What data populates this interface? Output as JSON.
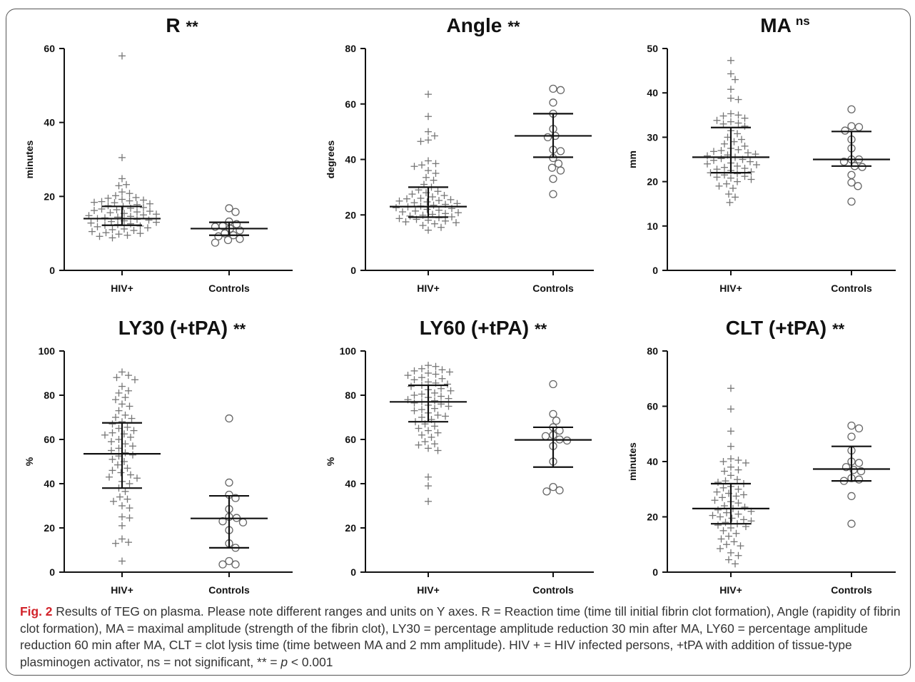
{
  "chart_data": [
    {
      "type": "scatter",
      "title": "R",
      "significance": "**",
      "ylabel": "minutes",
      "ylim": [
        0,
        60
      ],
      "yticks": [
        0,
        20,
        40,
        60
      ],
      "categories": [
        "HIV+",
        "Controls"
      ],
      "groups": [
        {
          "name": "HIV+",
          "marker": "plus",
          "values": [
            58.0,
            30.5,
            24.8,
            23.2,
            22.9,
            21.2,
            20.8,
            20.2,
            19.7,
            19.5,
            19.2,
            19.0,
            18.8,
            18.6,
            18.4,
            18.3,
            18.0,
            17.8,
            17.5,
            17.3,
            17.0,
            16.8,
            16.6,
            16.4,
            16.2,
            16.0,
            15.8,
            15.6,
            15.4,
            15.2,
            15.0,
            14.8,
            14.6,
            14.4,
            14.2,
            14.0,
            13.8,
            13.6,
            13.4,
            13.2,
            13.0,
            12.8,
            12.6,
            12.4,
            12.2,
            12.0,
            11.8,
            11.5,
            11.2,
            11.0,
            10.8,
            10.5,
            10.2,
            10.0,
            9.8,
            9.5,
            9.2,
            8.8
          ],
          "median": 14.0,
          "q1": 12.2,
          "q3": 17.3
        },
        {
          "name": "Controls",
          "marker": "circle",
          "values": [
            16.8,
            15.8,
            13.2,
            12.5,
            12.0,
            11.8,
            11.3,
            10.8,
            10.0,
            9.5,
            9.2,
            8.5,
            8.2,
            7.5
          ],
          "median": 11.3,
          "q1": 9.5,
          "q3": 13.0
        }
      ]
    },
    {
      "type": "scatter",
      "title": "Angle",
      "significance": "**",
      "ylabel": "degrees",
      "ylim": [
        0,
        80
      ],
      "yticks": [
        0,
        20,
        40,
        60,
        80
      ],
      "categories": [
        "HIV+",
        "Controls"
      ],
      "groups": [
        {
          "name": "HIV+",
          "marker": "plus",
          "values": [
            63.5,
            55.5,
            50.0,
            48.5,
            47.0,
            46.5,
            39.5,
            38.5,
            38.0,
            37.5,
            36.0,
            35.0,
            33.5,
            32.5,
            31.0,
            30.0,
            29.0,
            28.5,
            28.0,
            27.5,
            27.0,
            26.5,
            26.0,
            25.8,
            25.5,
            25.2,
            25.0,
            24.7,
            24.4,
            24.1,
            23.8,
            23.5,
            23.2,
            22.9,
            22.6,
            22.3,
            22.0,
            21.7,
            21.4,
            21.1,
            20.8,
            20.5,
            20.2,
            19.9,
            19.6,
            19.3,
            19.0,
            18.7,
            18.4,
            18.1,
            17.8,
            17.5,
            17.2,
            16.8,
            16.2,
            15.5,
            14.5
          ],
          "median": 23.0,
          "q1": 19.2,
          "q3": 30.0
        },
        {
          "name": "Controls",
          "marker": "circle",
          "values": [
            65.5,
            65.0,
            60.5,
            56.5,
            51.0,
            48.5,
            48.0,
            43.5,
            43.0,
            40.5,
            38.5,
            37.0,
            36.0,
            33.0,
            27.5
          ],
          "median": 48.5,
          "q1": 40.8,
          "q3": 56.5
        }
      ]
    },
    {
      "type": "scatter",
      "title": "MA",
      "significance": "ns",
      "ylabel": "mm",
      "ylim": [
        0,
        50
      ],
      "yticks": [
        0,
        10,
        20,
        30,
        40,
        50
      ],
      "categories": [
        "HIV+",
        "Controls"
      ],
      "groups": [
        {
          "name": "HIV+",
          "marker": "plus",
          "values": [
            47.3,
            44.3,
            43.0,
            40.8,
            38.8,
            38.5,
            35.3,
            35.0,
            34.8,
            34.3,
            33.8,
            33.5,
            33.2,
            33.0,
            32.5,
            31.5,
            30.8,
            30.0,
            29.5,
            29.0,
            28.5,
            28.0,
            27.5,
            27.2,
            27.0,
            26.8,
            26.5,
            26.2,
            26.0,
            25.8,
            25.5,
            25.2,
            25.0,
            24.8,
            24.5,
            24.2,
            24.0,
            23.8,
            23.5,
            23.2,
            23.0,
            22.8,
            22.5,
            22.2,
            22.0,
            21.8,
            21.5,
            21.2,
            21.0,
            20.8,
            20.5,
            20.0,
            19.5,
            19.0,
            18.5,
            17.2,
            16.5,
            15.3
          ],
          "median": 25.5,
          "q1": 22.0,
          "q3": 32.2
        },
        {
          "name": "Controls",
          "marker": "circle",
          "values": [
            36.3,
            32.5,
            32.3,
            31.5,
            29.5,
            27.5,
            25.0,
            25.0,
            24.5,
            23.5,
            23.3,
            21.5,
            19.8,
            19.0,
            15.5
          ],
          "median": 25.0,
          "q1": 23.5,
          "q3": 31.3
        }
      ]
    },
    {
      "type": "scatter",
      "title": "LY30 (+tPA)",
      "significance": "**",
      "ylabel": "%",
      "ylim": [
        0,
        100
      ],
      "yticks": [
        0,
        20,
        40,
        60,
        80,
        100
      ],
      "categories": [
        "HIV+",
        "Controls"
      ],
      "groups": [
        {
          "name": "HIV+",
          "marker": "plus",
          "values": [
            90.5,
            89.0,
            88.0,
            87.0,
            84.0,
            82.0,
            81.0,
            79.0,
            78.0,
            76.0,
            75.0,
            73.0,
            71.0,
            70.0,
            69.5,
            68.0,
            67.0,
            65.5,
            65.0,
            64.0,
            63.0,
            62.5,
            62.0,
            61.0,
            60.0,
            59.0,
            58.0,
            57.0,
            56.0,
            55.0,
            54.0,
            53.0,
            52.5,
            51.0,
            50.0,
            48.5,
            47.0,
            46.0,
            45.0,
            44.0,
            43.0,
            42.5,
            41.0,
            40.0,
            38.0,
            36.5,
            34.0,
            33.0,
            32.0,
            30.0,
            29.0,
            25.0,
            24.5,
            21.0,
            15.0,
            13.5,
            13.0,
            5.0
          ],
          "median": 53.5,
          "q1": 38.0,
          "q3": 67.5
        },
        {
          "name": "Controls",
          "marker": "circle",
          "values": [
            69.5,
            40.5,
            35.0,
            33.5,
            28.5,
            25.0,
            24.5,
            23.0,
            22.5,
            19.0,
            13.0,
            11.0,
            5.0,
            3.5,
            3.5
          ],
          "median": 24.3,
          "q1": 11.0,
          "q3": 34.5
        }
      ]
    },
    {
      "type": "scatter",
      "title": "LY60 (+tPA)",
      "significance": "**",
      "ylabel": "%",
      "ylim": [
        0,
        100
      ],
      "yticks": [
        0,
        20,
        40,
        60,
        80,
        100
      ],
      "categories": [
        "HIV+",
        "Controls"
      ],
      "groups": [
        {
          "name": "HIV+",
          "marker": "plus",
          "values": [
            93.5,
            93.0,
            92.0,
            91.5,
            91.0,
            90.5,
            90.0,
            89.5,
            89.0,
            88.0,
            87.5,
            87.0,
            86.0,
            85.5,
            85.0,
            84.5,
            84.0,
            83.0,
            82.5,
            82.0,
            81.0,
            80.5,
            80.0,
            79.5,
            79.0,
            78.5,
            78.0,
            77.5,
            77.0,
            76.5,
            76.0,
            75.5,
            75.0,
            74.0,
            73.5,
            73.0,
            72.0,
            71.0,
            70.5,
            70.0,
            69.0,
            68.0,
            67.0,
            66.0,
            65.0,
            64.0,
            63.0,
            62.0,
            61.0,
            59.0,
            58.0,
            57.5,
            56.0,
            55.0,
            43.0,
            39.0,
            32.0
          ],
          "median": 77.0,
          "q1": 68.0,
          "q3": 84.5
        },
        {
          "name": "Controls",
          "marker": "circle",
          "values": [
            85.0,
            71.5,
            68.5,
            65.5,
            64.0,
            62.0,
            61.5,
            60.0,
            59.5,
            57.0,
            50.0,
            38.5,
            37.0,
            36.5
          ],
          "median": 59.8,
          "q1": 47.5,
          "q3": 65.5
        }
      ]
    },
    {
      "type": "scatter",
      "title": "CLT (+tPA)",
      "significance": "**",
      "ylabel": "minutes",
      "ylim": [
        0,
        80
      ],
      "yticks": [
        0,
        20,
        40,
        60,
        80
      ],
      "categories": [
        "HIV+",
        "Controls"
      ],
      "groups": [
        {
          "name": "HIV+",
          "marker": "plus",
          "values": [
            66.5,
            59.0,
            51.0,
            45.5,
            41.0,
            40.5,
            40.0,
            39.5,
            38.0,
            37.0,
            36.5,
            35.0,
            33.5,
            33.0,
            32.5,
            32.0,
            31.0,
            30.5,
            30.0,
            29.0,
            28.5,
            28.0,
            27.5,
            27.0,
            26.0,
            25.5,
            25.0,
            24.0,
            23.5,
            23.0,
            22.5,
            22.0,
            21.5,
            21.0,
            20.5,
            20.0,
            19.5,
            19.0,
            18.5,
            18.0,
            17.5,
            17.0,
            16.5,
            16.0,
            15.0,
            14.0,
            13.0,
            12.0,
            11.0,
            10.0,
            9.5,
            8.5,
            7.0,
            6.0,
            4.5,
            3.0
          ],
          "median": 23.0,
          "q1": 17.5,
          "q3": 32.0
        },
        {
          "name": "Controls",
          "marker": "circle",
          "values": [
            53.0,
            52.0,
            49.0,
            44.0,
            40.0,
            39.5,
            38.0,
            37.0,
            36.5,
            34.0,
            33.5,
            33.0,
            27.5,
            17.5
          ],
          "median": 37.3,
          "q1": 33.0,
          "q3": 45.5
        }
      ]
    }
  ],
  "caption": {
    "fig_label": "Fig. 2",
    "text_a": " Results of TEG on plasma. Please note different ranges and units on Y axes. R = Reaction time (time till initial fibrin clot formation), Angle (rapidity of fibrin clot formation), MA = maximal amplitude (strength of the fibrin clot), LY30 = percentage amplitude reduction 30 min after MA, LY60 = percentage amplitude reduction 60 min after MA, CLT = clot lysis time (time between MA and 2 mm amplitude). HIV + = HIV infected persons, +tPA with addition of tissue-type plasminogen activator, ns = not significant, ** = ",
    "p_symbol": "p",
    "text_b": " < 0.001"
  }
}
